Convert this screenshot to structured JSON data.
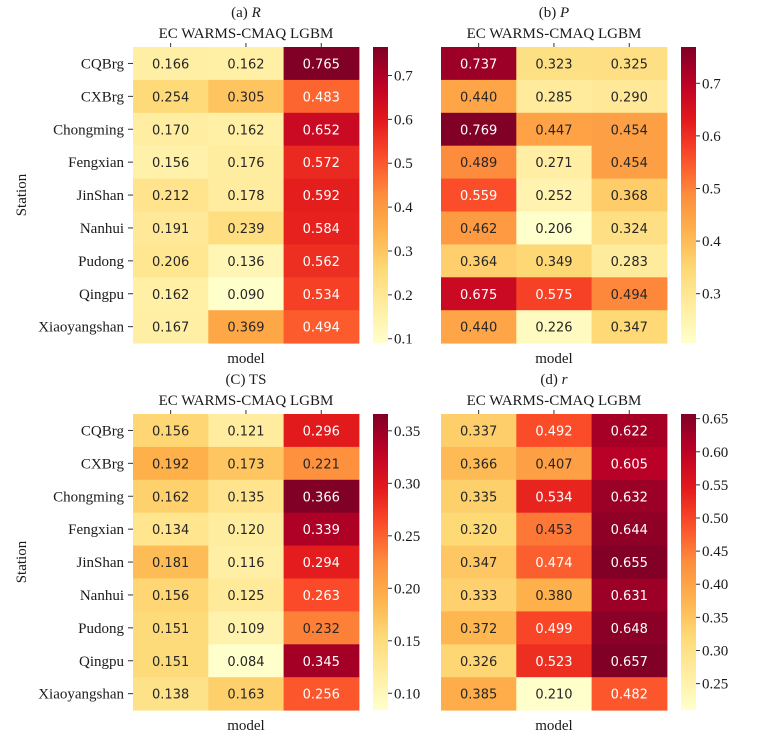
{
  "chart_data": [
    {
      "type": "heatmap",
      "title": "(a) R",
      "title_prefix": "(a) ",
      "title_var": "R",
      "title_italic": true,
      "xlabel": "model",
      "ylabel": "Station",
      "x_categories": [
        "EC",
        "WARMS-CMAQ",
        "LGBM"
      ],
      "x_tick_text": "EC WARMS-CMAQ LGBM",
      "y_categories": [
        "CQBrg",
        "CXBrg",
        "Chongming",
        "Fengxian",
        "JinShan",
        "Nanhui",
        "Pudong",
        "Qingpu",
        "Xiaoyangshan"
      ],
      "values": [
        [
          0.166,
          0.162,
          0.765
        ],
        [
          0.254,
          0.305,
          0.483
        ],
        [
          0.17,
          0.162,
          0.652
        ],
        [
          0.156,
          0.176,
          0.572
        ],
        [
          0.212,
          0.178,
          0.592
        ],
        [
          0.191,
          0.239,
          0.584
        ],
        [
          0.206,
          0.136,
          0.562
        ],
        [
          0.162,
          0.09,
          0.534
        ],
        [
          0.167,
          0.369,
          0.494
        ]
      ],
      "colormap": "YlOrRd",
      "vmin": 0.09,
      "vmax": 0.765,
      "colorbar_ticks": [
        "0.1",
        "0.2",
        "0.3",
        "0.4",
        "0.5",
        "0.6",
        "0.7"
      ]
    },
    {
      "type": "heatmap",
      "title": "(b) P",
      "title_prefix": "(b) ",
      "title_var": "P",
      "title_italic": true,
      "xlabel": "model",
      "ylabel": "",
      "x_categories": [
        "EC",
        "WARMS-CMAQ",
        "LGBM"
      ],
      "x_tick_text": "EC WARMS-CMAQ LGBM",
      "y_categories": [
        "CQBrg",
        "CXBrg",
        "Chongming",
        "Fengxian",
        "JinShan",
        "Nanhui",
        "Pudong",
        "Qingpu",
        "Xiaoyangshan"
      ],
      "values": [
        [
          0.737,
          0.323,
          0.325
        ],
        [
          0.44,
          0.285,
          0.29
        ],
        [
          0.769,
          0.447,
          0.454
        ],
        [
          0.489,
          0.271,
          0.454
        ],
        [
          0.559,
          0.252,
          0.368
        ],
        [
          0.462,
          0.206,
          0.324
        ],
        [
          0.364,
          0.349,
          0.283
        ],
        [
          0.675,
          0.575,
          0.494
        ],
        [
          0.44,
          0.226,
          0.347
        ]
      ],
      "colormap": "YlOrRd",
      "vmin": 0.206,
      "vmax": 0.769,
      "colorbar_ticks": [
        "0.3",
        "0.4",
        "0.5",
        "0.6",
        "0.7"
      ]
    },
    {
      "type": "heatmap",
      "title": "(C) TS",
      "title_prefix": "(C) ",
      "title_var": "TS",
      "title_italic": false,
      "xlabel": "model",
      "ylabel": "Station",
      "x_categories": [
        "EC",
        "WARMS-CMAQ",
        "LGBM"
      ],
      "x_tick_text": "EC WARMS-CMAQ LGBM",
      "y_categories": [
        "CQBrg",
        "CXBrg",
        "Chongming",
        "Fengxian",
        "JinShan",
        "Nanhui",
        "Pudong",
        "Qingpu",
        "Xiaoyangshan"
      ],
      "values": [
        [
          0.156,
          0.121,
          0.296
        ],
        [
          0.192,
          0.173,
          0.221
        ],
        [
          0.162,
          0.135,
          0.366
        ],
        [
          0.134,
          0.12,
          0.339
        ],
        [
          0.181,
          0.116,
          0.294
        ],
        [
          0.156,
          0.125,
          0.263
        ],
        [
          0.151,
          0.109,
          0.232
        ],
        [
          0.151,
          0.084,
          0.345
        ],
        [
          0.138,
          0.163,
          0.256
        ]
      ],
      "colormap": "YlOrRd",
      "vmin": 0.084,
      "vmax": 0.366,
      "colorbar_ticks": [
        "0.10",
        "0.15",
        "0.20",
        "0.25",
        "0.30",
        "0.35"
      ]
    },
    {
      "type": "heatmap",
      "title": "(d) r",
      "title_prefix": "(d) ",
      "title_var": "r",
      "title_italic": true,
      "xlabel": "model",
      "ylabel": "",
      "x_categories": [
        "EC",
        "WARMS-CMAQ",
        "LGBM"
      ],
      "x_tick_text": "EC WARMS-CMAQ LGBM",
      "y_categories": [
        "CQBrg",
        "CXBrg",
        "Chongming",
        "Fengxian",
        "JinShan",
        "Nanhui",
        "Pudong",
        "Qingpu",
        "Xiaoyangshan"
      ],
      "values": [
        [
          0.337,
          0.492,
          0.622
        ],
        [
          0.366,
          0.407,
          0.605
        ],
        [
          0.335,
          0.534,
          0.632
        ],
        [
          0.32,
          0.453,
          0.644
        ],
        [
          0.347,
          0.474,
          0.655
        ],
        [
          0.333,
          0.38,
          0.631
        ],
        [
          0.372,
          0.499,
          0.648
        ],
        [
          0.326,
          0.523,
          0.657
        ],
        [
          0.385,
          0.21,
          0.482
        ]
      ],
      "colormap": "YlOrRd",
      "vmin": 0.21,
      "vmax": 0.657,
      "colorbar_ticks": [
        "0.25",
        "0.30",
        "0.35",
        "0.40",
        "0.45",
        "0.50",
        "0.55",
        "0.60",
        "0.65"
      ]
    }
  ]
}
